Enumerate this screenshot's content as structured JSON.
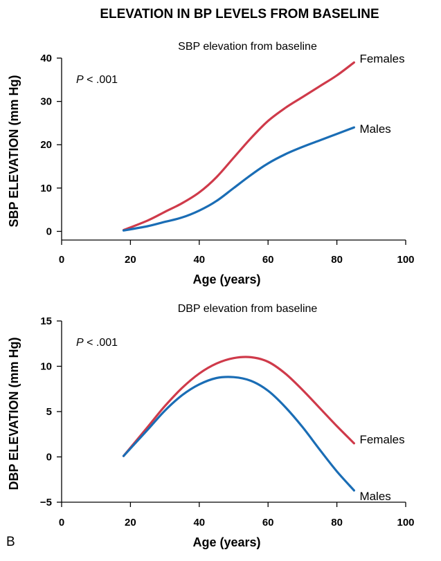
{
  "figure": {
    "title": "ELEVATION IN BP LEVELS FROM BASELINE",
    "panel_letter": "B"
  },
  "colors": {
    "females": "#cf3a4a",
    "males": "#1a6db5",
    "axis": "#000000"
  },
  "chart_data": [
    {
      "type": "line",
      "title": "SBP elevation from baseline",
      "xlabel": "Age (years)",
      "ylabel": "SBP ELEVATION (mm Hg)",
      "annotation": {
        "italic": "P",
        "rest": " < .001"
      },
      "xlim": [
        0,
        100
      ],
      "ylim": [
        -2,
        40
      ],
      "xticks": [
        0,
        20,
        40,
        60,
        80,
        100
      ],
      "yticks": [
        0,
        10,
        20,
        30,
        40
      ],
      "series": [
        {
          "name": "Females",
          "color": "#cf3a4a",
          "x": [
            18,
            25,
            30,
            35,
            40,
            45,
            50,
            55,
            60,
            65,
            70,
            75,
            80,
            85
          ],
          "y": [
            0.3,
            2.5,
            4.5,
            6.5,
            9,
            12.5,
            17,
            21.5,
            25.5,
            28.5,
            31,
            33.5,
            36,
            39
          ]
        },
        {
          "name": "Males",
          "color": "#1a6db5",
          "x": [
            18,
            25,
            30,
            35,
            40,
            45,
            50,
            55,
            60,
            65,
            70,
            75,
            80,
            85
          ],
          "y": [
            0.2,
            1.2,
            2.2,
            3.2,
            4.8,
            7,
            10,
            13,
            15.7,
            17.8,
            19.5,
            21,
            22.5,
            24
          ]
        }
      ]
    },
    {
      "type": "line",
      "title": "DBP elevation from baseline",
      "xlabel": "Age (years)",
      "ylabel": "DBP ELEVATION (mm Hg)",
      "annotation": {
        "italic": "P",
        "rest": " < .001"
      },
      "xlim": [
        0,
        100
      ],
      "ylim": [
        -5,
        15
      ],
      "xticks": [
        0,
        20,
        40,
        60,
        80,
        100
      ],
      "yticks": [
        -5,
        0,
        5,
        10,
        15
      ],
      "ytick_labels": [
        "−5",
        "0",
        "5",
        "10",
        "15"
      ],
      "series": [
        {
          "name": "Females",
          "color": "#cf3a4a",
          "x": [
            18,
            25,
            30,
            35,
            40,
            45,
            50,
            55,
            60,
            65,
            70,
            75,
            80,
            85
          ],
          "y": [
            0.1,
            3.3,
            5.6,
            7.6,
            9.2,
            10.3,
            10.9,
            11,
            10.5,
            9.2,
            7.4,
            5.4,
            3.4,
            1.5
          ]
        },
        {
          "name": "Males",
          "color": "#1a6db5",
          "x": [
            18,
            25,
            30,
            35,
            40,
            45,
            50,
            55,
            60,
            65,
            70,
            75,
            80,
            85
          ],
          "y": [
            0.1,
            3.0,
            5.1,
            6.8,
            8.0,
            8.7,
            8.8,
            8.4,
            7.3,
            5.5,
            3.3,
            0.8,
            -1.6,
            -3.7
          ]
        }
      ]
    }
  ]
}
